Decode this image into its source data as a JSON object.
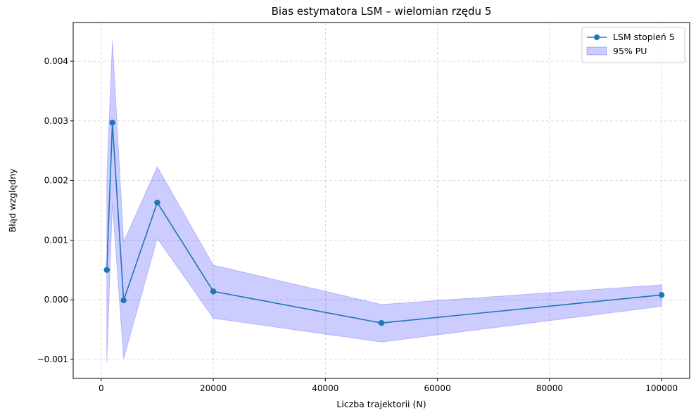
{
  "chart_data": {
    "type": "line",
    "title": "Bias estymatora LSM – wielomian rzędu 5",
    "xlabel": "Liczba trajektorii (N)",
    "ylabel": "Błąd względny",
    "xlim": [
      -5000,
      105000
    ],
    "ylim": [
      -0.00132,
      0.00465
    ],
    "x_ticks": [
      0,
      20000,
      40000,
      60000,
      80000,
      100000
    ],
    "x_tick_labels": [
      "0",
      "20000",
      "40000",
      "60000",
      "80000",
      "100000"
    ],
    "y_ticks": [
      -0.001,
      0.0,
      0.001,
      0.002,
      0.003,
      0.004
    ],
    "y_tick_labels": [
      "−0.001",
      "0.000",
      "0.001",
      "0.002",
      "0.003",
      "0.004"
    ],
    "grid": true,
    "legend_position": "top-right",
    "series": [
      {
        "name": "LSM stopień 5",
        "type": "line",
        "color": "#1f77b4",
        "marker": "circle",
        "x": [
          1000,
          2000,
          4000,
          10000,
          20000,
          50000,
          100000
        ],
        "y": [
          0.0005,
          0.00297,
          -1e-05,
          0.00163,
          0.00014,
          -0.00039,
          8e-05
        ]
      },
      {
        "name": "95% PU",
        "type": "band",
        "color": "#0000ff",
        "opacity": 0.2,
        "x": [
          1000,
          2000,
          4000,
          10000,
          20000,
          50000,
          100000
        ],
        "lower": [
          -0.00104,
          0.00162,
          -0.00099,
          0.00103,
          -0.00031,
          -0.00071,
          -0.00011
        ],
        "upper": [
          0.00205,
          0.00434,
          0.00097,
          0.00223,
          0.00058,
          -8e-05,
          0.00025
        ]
      }
    ]
  }
}
